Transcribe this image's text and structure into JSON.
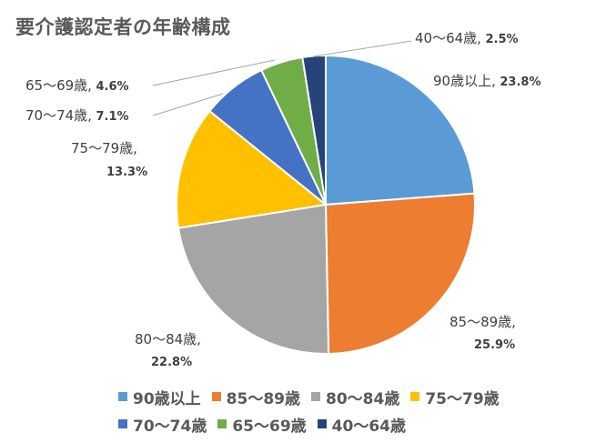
{
  "chart_data": {
    "type": "pie",
    "title": "要介護認定者の年齢構成",
    "start_angle_deg": 0,
    "direction": "clockwise",
    "legend_position": "bottom",
    "slices": [
      {
        "label": "90歳以上",
        "value": 23.8,
        "value_label": "23.8%",
        "color": "#5B9BD5"
      },
      {
        "label": "85～89歳",
        "value": 25.9,
        "value_label": "25.9%",
        "color": "#ED7D31"
      },
      {
        "label": "80～84歳",
        "value": 22.8,
        "value_label": "22.8%",
        "color": "#A5A5A5"
      },
      {
        "label": "75～79歳",
        "value": 13.3,
        "value_label": "13.3%",
        "color": "#FFC000"
      },
      {
        "label": "70～74歳",
        "value": 7.1,
        "value_label": "7.1%",
        "color": "#4472C4"
      },
      {
        "label": "65～69歳",
        "value": 4.6,
        "value_label": "4.6%",
        "color": "#70AD47"
      },
      {
        "label": "40～64歳",
        "value": 2.5,
        "value_label": "2.5%",
        "color": "#264478"
      }
    ]
  }
}
